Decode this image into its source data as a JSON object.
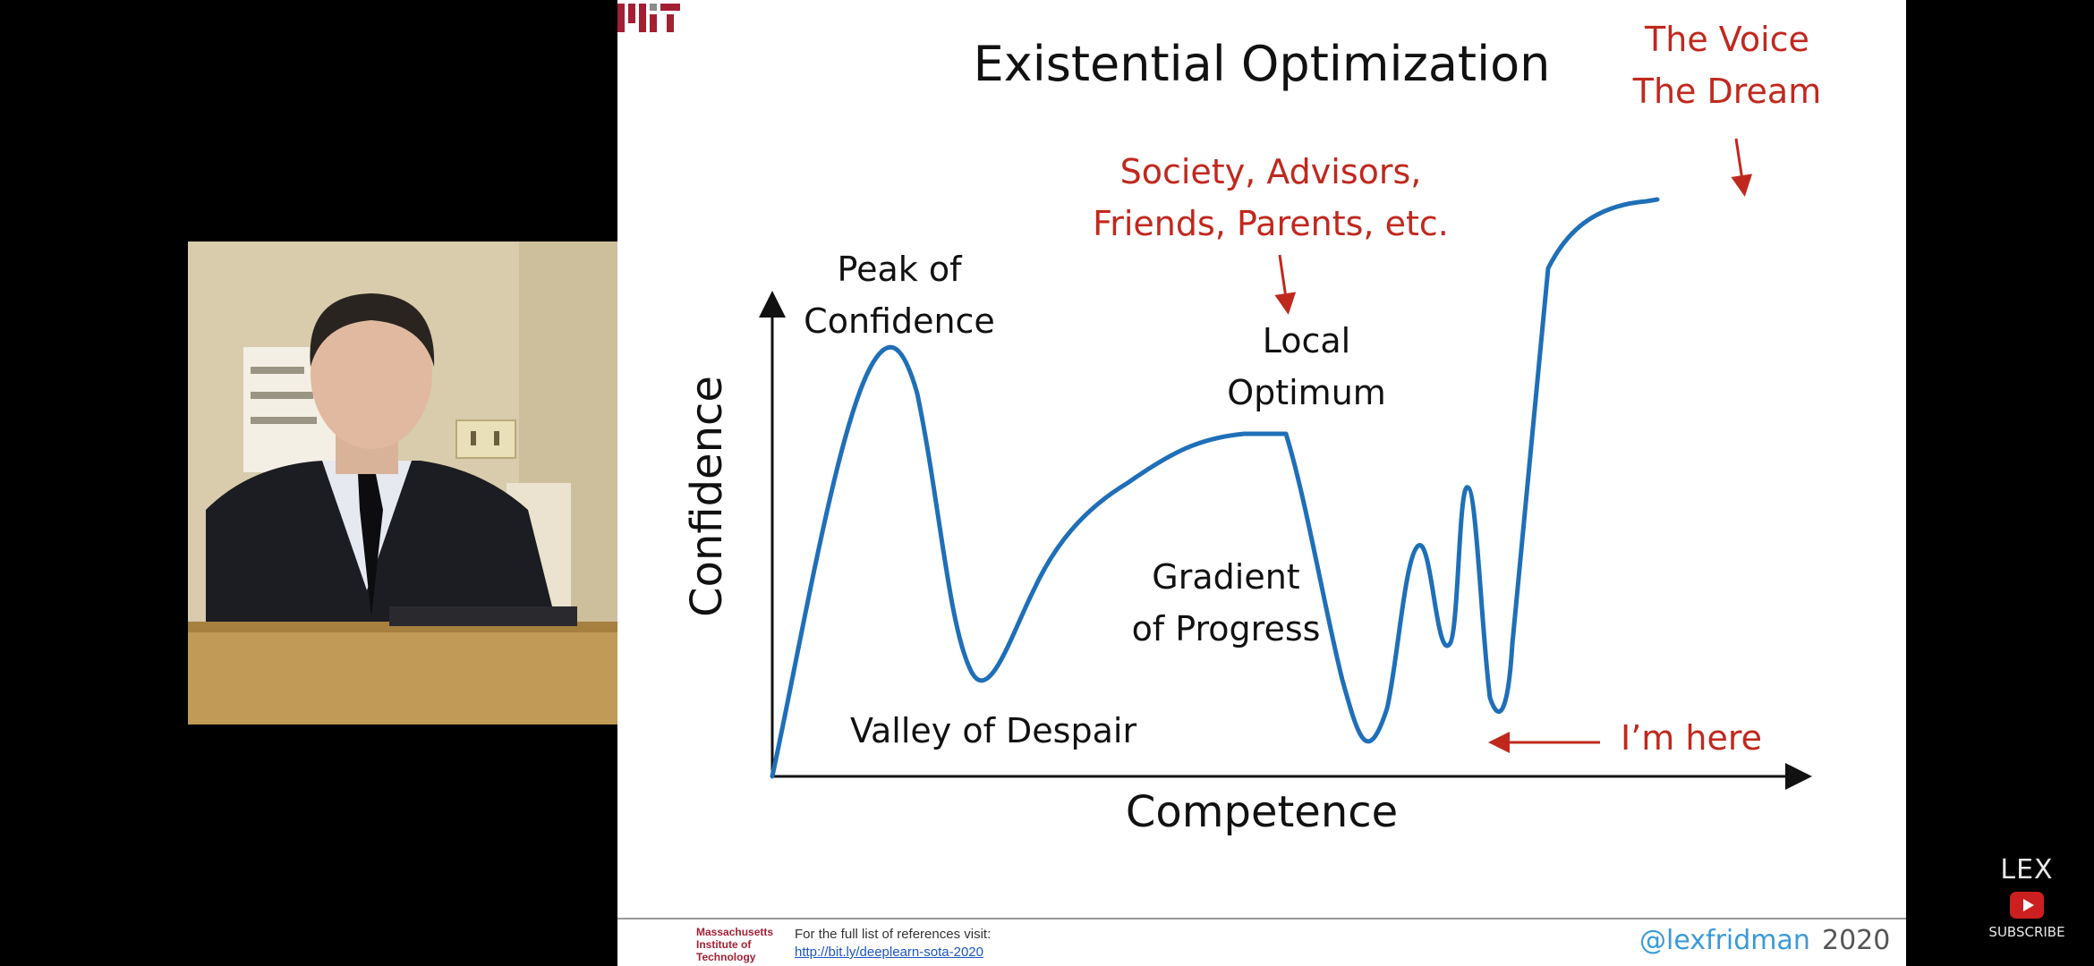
{
  "slide": {
    "title": "Existential Optimization",
    "labels": {
      "peak": [
        "Peak of",
        "Confidence"
      ],
      "local_optimum": [
        "Local",
        "Optimum"
      ],
      "society": [
        "Society, Advisors,",
        "Friends, Parents, etc."
      ],
      "voice": [
        "The Voice",
        "The Dream"
      ],
      "gradient": [
        "Gradient",
        "of Progress"
      ],
      "valley": "Valley of Despair",
      "im_here": "I’m here"
    },
    "xlabel": "Competence",
    "ylabel": "Confidence",
    "colors": {
      "curve": "#1f6fb8",
      "annotation": "#c0281e",
      "axis": "#111111"
    }
  },
  "footer": {
    "mit_name": "Massachusetts\nInstitute of\nTechnology",
    "refs_text": "For the full list of references visit:",
    "refs_link": "http://bit.ly/deeplearn-sota-2020",
    "handle": "@lexfridman",
    "year": "2020"
  },
  "watermark": {
    "brand": "LEX",
    "icon": "youtube-play-icon",
    "cta": "SUBSCRIBE"
  }
}
